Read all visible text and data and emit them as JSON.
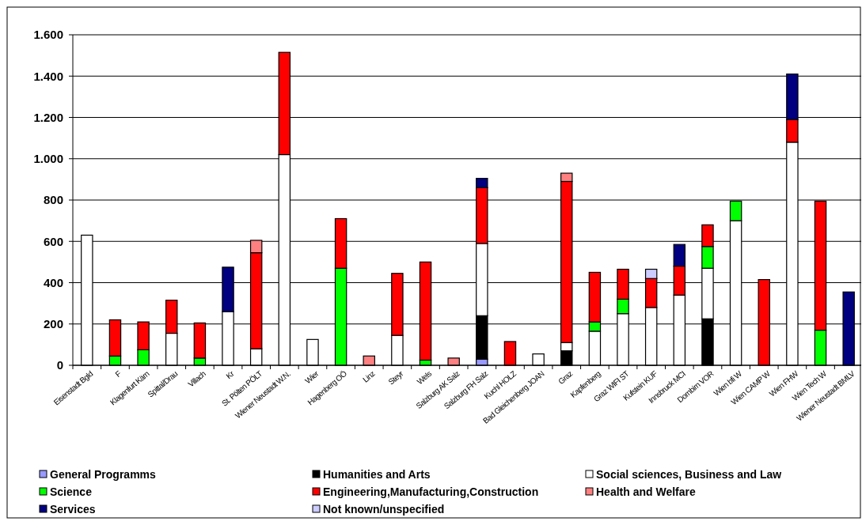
{
  "chart_data": {
    "type": "bar",
    "stacked": true,
    "grid": "y",
    "legend": "bottom",
    "categories": [
      "Eisenstadt Bgld",
      "F",
      "Klagenfurt Kärn",
      "Spittal/Drau",
      "Villach",
      "Kr",
      "St. Pölten PÖLT",
      "Wiener Neustadt W.N.",
      "Wier",
      "Hagenberg OÖ",
      "Linz",
      "Steyr",
      "Wels",
      "Salzburg AK Salz",
      "Salzburg FH Salz",
      "Kuchl HOLZ",
      "Bad Gleichenberg JOAN",
      "Graz",
      "Kapfenberg",
      "Graz WIFI ST",
      "Kufstein KUF",
      "Innsbruck MCI",
      "Dornbirn VOR",
      "Wien bfi W",
      "Wien CAMP W",
      "Wien FHW",
      "Wien Tech W",
      "Wiener Neustadt BMLV"
    ],
    "ylim": [
      0,
      1600
    ],
    "yticks": [
      0,
      200,
      400,
      600,
      800,
      {
        "value": 1000,
        "label": "1.000"
      },
      {
        "value": 1200,
        "label": "1.200"
      },
      {
        "value": 1400,
        "label": "1.400"
      },
      {
        "value": 1600,
        "label": "1.600"
      }
    ],
    "series": [
      {
        "name": "General Programms",
        "color": "#9999ff",
        "values": [
          null,
          null,
          null,
          null,
          null,
          null,
          null,
          null,
          null,
          null,
          null,
          null,
          null,
          null,
          30,
          null,
          null,
          null,
          null,
          null,
          null,
          null,
          null,
          null,
          null,
          null,
          null,
          null
        ]
      },
      {
        "name": "Humanities and Arts",
        "color": "#000000",
        "values": [
          null,
          null,
          null,
          null,
          null,
          null,
          null,
          null,
          null,
          null,
          null,
          null,
          null,
          null,
          210,
          null,
          null,
          70,
          null,
          null,
          null,
          null,
          225,
          null,
          null,
          null,
          null,
          null
        ]
      },
      {
        "name": "Social sciences, Business and Law",
        "color": "#ffffff",
        "values": [
          630,
          null,
          null,
          155,
          null,
          260,
          80,
          1020,
          125,
          null,
          null,
          145,
          null,
          null,
          350,
          null,
          55,
          40,
          165,
          250,
          280,
          340,
          245,
          700,
          null,
          1080,
          null,
          null
        ]
      },
      {
        "name": "Science",
        "color": "#00ff00",
        "values": [
          null,
          45,
          75,
          null,
          35,
          null,
          null,
          null,
          null,
          470,
          null,
          null,
          25,
          null,
          null,
          null,
          null,
          null,
          45,
          70,
          null,
          null,
          105,
          95,
          null,
          null,
          170,
          null
        ]
      },
      {
        "name": "Engineering,Manufacturing,Construction",
        "color": "#ff0000",
        "values": [
          null,
          175,
          135,
          160,
          170,
          null,
          465,
          495,
          null,
          240,
          null,
          300,
          475,
          null,
          270,
          115,
          null,
          780,
          240,
          145,
          140,
          140,
          105,
          null,
          415,
          110,
          625,
          null
        ]
      },
      {
        "name": "Health and Welfare",
        "color": "#ff8080",
        "values": [
          null,
          null,
          null,
          null,
          null,
          null,
          60,
          null,
          null,
          null,
          45,
          null,
          null,
          35,
          null,
          null,
          null,
          40,
          null,
          null,
          null,
          null,
          null,
          null,
          null,
          null,
          null,
          null
        ]
      },
      {
        "name": "Services",
        "color": "#000080",
        "values": [
          null,
          null,
          null,
          null,
          null,
          215,
          null,
          null,
          null,
          null,
          null,
          null,
          null,
          null,
          45,
          null,
          null,
          null,
          null,
          null,
          null,
          105,
          null,
          null,
          null,
          220,
          null,
          355
        ]
      },
      {
        "name": "Not known/unspecified",
        "color": "#ccccff",
        "values": [
          null,
          null,
          null,
          null,
          null,
          null,
          null,
          null,
          null,
          null,
          null,
          null,
          null,
          null,
          null,
          null,
          null,
          null,
          null,
          null,
          45,
          null,
          null,
          null,
          null,
          null,
          null,
          null
        ]
      }
    ]
  }
}
